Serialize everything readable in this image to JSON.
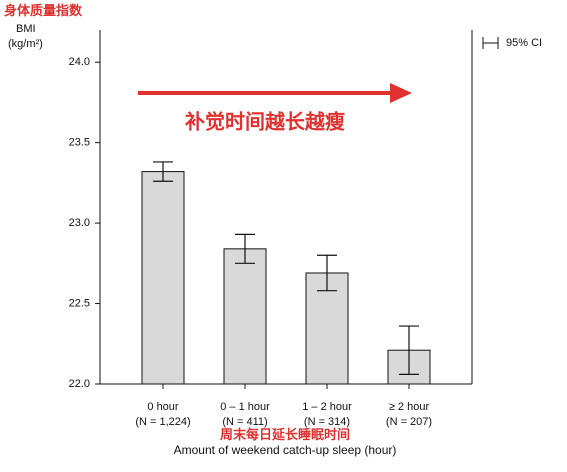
{
  "chart_data": {
    "type": "bar",
    "annotation_top": "身体质量指数",
    "y_label": "BMI",
    "y_unit": "(kg/m²)",
    "legend_label": "95% CI",
    "annotation_center": "补觉时间越长越瘦",
    "annotation_bottom": "周末每日延长睡眠时间",
    "x_label": "Amount of weekend catch-up sleep (hour)",
    "categories": [
      "0 hour",
      "0 – 1 hour",
      "1 – 2 hour",
      "≥ 2 hour"
    ],
    "category_notes": [
      "(N = 1,224)",
      "(N = 411)",
      "(N = 314)",
      "(N = 207)"
    ],
    "values": [
      23.32,
      22.84,
      22.69,
      22.21
    ],
    "errors": [
      0.06,
      0.09,
      0.11,
      0.15
    ],
    "color": "#d9d9d9",
    "ylim": [
      22.0,
      24.2
    ],
    "yticks": [
      {
        "value": 22,
        "label": "22.0"
      },
      22.5,
      {
        "value": 23,
        "label": "23.0"
      },
      23.5,
      {
        "value": 24,
        "label": "24.0"
      }
    ]
  }
}
